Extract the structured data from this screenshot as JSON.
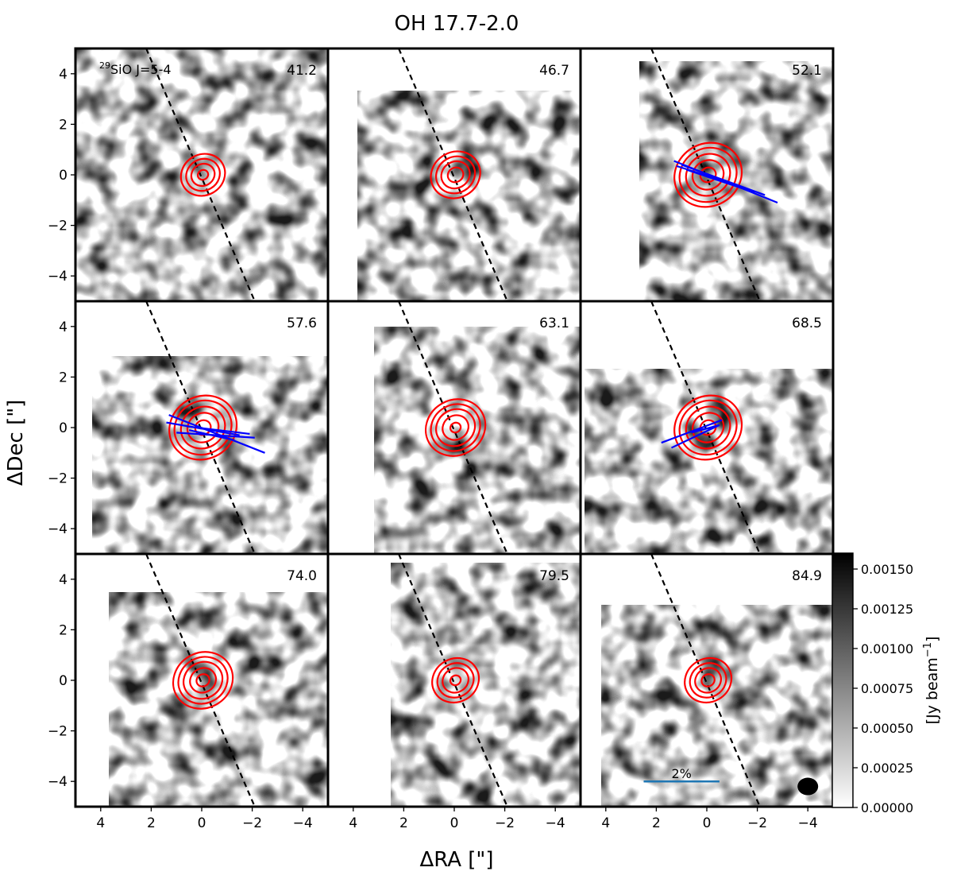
{
  "figure": {
    "title": "OH 17.7-2.0",
    "xlabel": "ΔRA [\"]",
    "ylabel": "ΔDec [\"]",
    "molecule_label_sup": "29",
    "molecule_label_rest": "SiO J=5-4"
  },
  "colorbar": {
    "label": "[Jy beam",
    "label_sup": "−1",
    "label_close": "]",
    "ticks": [
      "0.00000",
      "0.00025",
      "0.00050",
      "0.00075",
      "0.00100",
      "0.00125",
      "0.00150"
    ],
    "range": [
      0,
      0.0016
    ]
  },
  "scale_bar": {
    "label": "2%",
    "color": "#1f77b4"
  },
  "colors": {
    "contour": "#ff0000",
    "vectors": "#0000ff",
    "axis_line": "#000000"
  },
  "chart_data": {
    "type": "heatmap",
    "description_free": true,
    "xlim": [
      5,
      -5
    ],
    "ylim": [
      -5,
      5
    ],
    "x_ticks": [
      "4",
      "2",
      "0",
      "−2",
      "−4"
    ],
    "y_ticks": [
      "4",
      "2",
      "0",
      "−2",
      "−4"
    ],
    "x_tick_values": [
      4,
      2,
      0,
      -2,
      -4
    ],
    "y_tick_values": [
      4,
      2,
      0,
      -2,
      -4
    ],
    "axis_line": {
      "from": [
        2.2,
        5
      ],
      "to": [
        -2.1,
        -5
      ]
    },
    "panels": [
      {
        "velocity": "41.2",
        "contour_radii": [
          0.2,
          0.45,
          0.65,
          0.85
        ],
        "vectors": []
      },
      {
        "velocity": "46.7",
        "contour_radii": [
          0.3,
          0.55,
          0.75,
          0.95
        ],
        "vectors": []
      },
      {
        "velocity": "52.1",
        "contour_radii": [
          0.3,
          0.6,
          0.85,
          1.1,
          1.3
        ],
        "vectors": [
          [
            1.2,
            0.35,
            -1.0,
            -0.35
          ],
          [
            1.3,
            0.55,
            -2.8,
            -1.1
          ],
          [
            1.0,
            0.4,
            -2.3,
            -0.8
          ],
          [
            0.8,
            0.2,
            -1.9,
            -0.7
          ]
        ]
      },
      {
        "velocity": "57.6",
        "contour_radii": [
          0.3,
          0.6,
          0.85,
          1.1,
          1.3
        ],
        "vectors": [
          [
            1.3,
            0.5,
            -2.5,
            -1.0
          ],
          [
            1.4,
            0.2,
            -1.5,
            -0.3
          ],
          [
            0.6,
            0.05,
            -1.9,
            -0.25
          ],
          [
            1.0,
            -0.2,
            -2.1,
            -0.4
          ],
          [
            0.5,
            -0.1,
            -1.3,
            -0.5
          ]
        ]
      },
      {
        "velocity": "63.1",
        "contour_radii": [
          0.2,
          0.5,
          0.75,
          0.95,
          1.15
        ],
        "vectors": []
      },
      {
        "velocity": "68.5",
        "contour_radii": [
          0.3,
          0.6,
          0.85,
          1.1,
          1.3
        ],
        "vectors": [
          [
            1.8,
            -0.6,
            -0.6,
            0.3
          ],
          [
            1.4,
            -0.8,
            -0.5,
            0.1
          ],
          [
            0.6,
            -0.2,
            -0.5,
            0.1
          ],
          [
            0.4,
            -0.1,
            -0.3,
            0.0
          ]
        ]
      },
      {
        "velocity": "74.0",
        "contour_radii": [
          0.25,
          0.5,
          0.75,
          0.95,
          1.15
        ],
        "vectors": []
      },
      {
        "velocity": "79.5",
        "contour_radii": [
          0.2,
          0.5,
          0.7,
          0.9
        ],
        "vectors": []
      },
      {
        "velocity": "84.9",
        "contour_radii": [
          0.25,
          0.5,
          0.7,
          0.9
        ],
        "vectors": []
      }
    ]
  }
}
